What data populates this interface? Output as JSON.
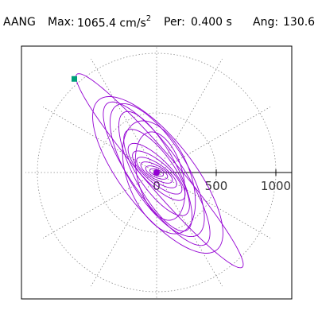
{
  "header": {
    "station": "AANG",
    "max_label": "Max:",
    "max_value": "1065.4 cm/s",
    "max_exp": "2",
    "period_label": "Per:",
    "period_value": "0.400 s",
    "angle_label": "Ang:",
    "angle_value": "130.6"
  },
  "chart_data": {
    "type": "scatter",
    "subtype": "polar-orbit",
    "title": "",
    "xlabel": "",
    "ylabel": "",
    "radial_ticks": [
      500,
      1000
    ],
    "radial_tick_labels": [
      "500",
      "1000"
    ],
    "tick_label_zero": "0",
    "rmax": 1065.4,
    "grid": true,
    "grid_rings": [
      500,
      1000
    ],
    "grid_spokes_deg": [
      0,
      30,
      60,
      90,
      120,
      150,
      180,
      210,
      240,
      270,
      300,
      330
    ],
    "series_color": "#9400d3",
    "marker_color": "#00a07a",
    "marker_point": [
      -690,
      785
    ],
    "peak_angle_deg": 130.6,
    "orbits": [
      {
        "a": 1065.4,
        "b": 140,
        "phi": 130.6,
        "cx": 25,
        "cy": 15
      },
      {
        "a": 800,
        "b": 300,
        "phi": 128,
        "cx": 10,
        "cy": -20
      },
      {
        "a": 720,
        "b": 210,
        "phi": 125,
        "cx": 0,
        "cy": -10
      },
      {
        "a": 640,
        "b": 240,
        "phi": 122,
        "cx": 5,
        "cy": 20
      },
      {
        "a": 560,
        "b": 180,
        "phi": 118,
        "cx": -10,
        "cy": 10
      },
      {
        "a": 500,
        "b": 260,
        "phi": 112,
        "cx": 20,
        "cy": -40
      },
      {
        "a": 430,
        "b": 150,
        "phi": 125,
        "cx": 0,
        "cy": 0
      },
      {
        "a": 380,
        "b": 190,
        "phi": 105,
        "cx": 30,
        "cy": -30
      },
      {
        "a": 320,
        "b": 110,
        "phi": 135,
        "cx": 0,
        "cy": 5
      },
      {
        "a": 260,
        "b": 90,
        "phi": 140,
        "cx": 5,
        "cy": 0
      },
      {
        "a": 200,
        "b": 70,
        "phi": 145,
        "cx": 0,
        "cy": 0
      },
      {
        "a": 150,
        "b": 55,
        "phi": 150,
        "cx": 0,
        "cy": 0
      },
      {
        "a": 100,
        "b": 40,
        "phi": 155,
        "cx": 0,
        "cy": 0
      },
      {
        "a": 60,
        "b": 25,
        "phi": 160,
        "cx": 0,
        "cy": 0
      }
    ]
  }
}
